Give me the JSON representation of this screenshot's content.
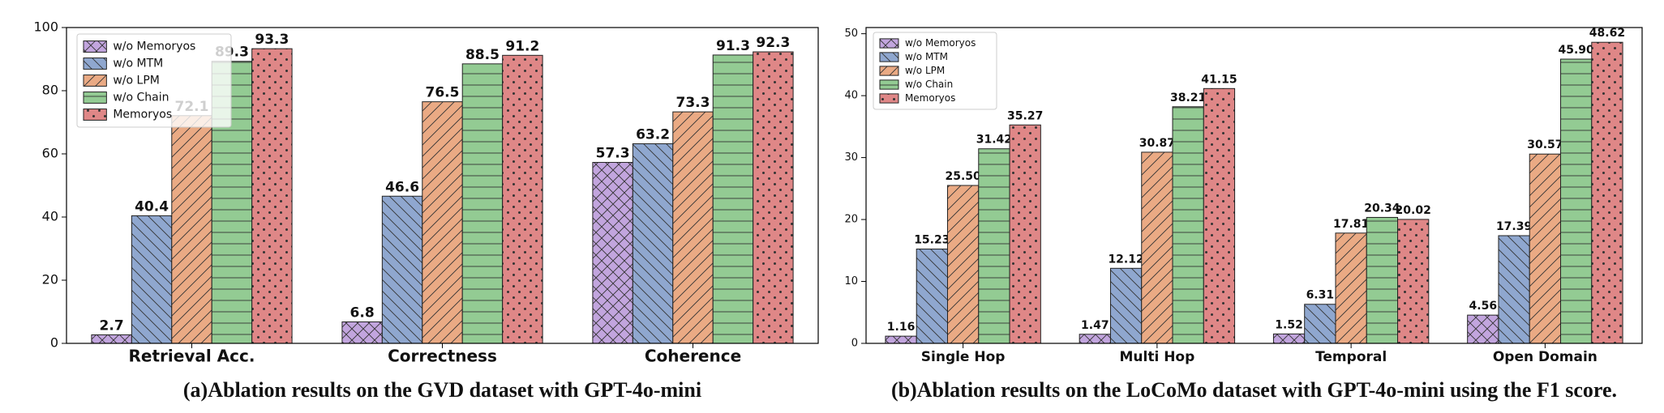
{
  "chart_data": [
    {
      "type": "bar",
      "caption": "(a)Ablation results on the GVD dataset with GPT-4o-mini",
      "categories": [
        "Retrieval Acc.",
        "Correctness",
        "Coherence"
      ],
      "series": [
        {
          "name": "w/o Memoryos",
          "color": "#c2a5de",
          "hatch": "x",
          "values": [
            2.7,
            6.8,
            57.3
          ]
        },
        {
          "name": "w/o MTM",
          "color": "#8fa7cf",
          "hatch": "backslash",
          "values": [
            40.4,
            46.6,
            63.2
          ]
        },
        {
          "name": "w/o LPM",
          "color": "#eaaa84",
          "hatch": "slash",
          "values": [
            72.1,
            76.5,
            73.3
          ]
        },
        {
          "name": "w/o Chain",
          "color": "#93cb93",
          "hatch": "horizontal",
          "values": [
            89.3,
            88.5,
            91.3
          ]
        },
        {
          "name": "Memoryos",
          "color": "#df8787",
          "hatch": "dots",
          "values": [
            93.3,
            91.2,
            92.3
          ]
        }
      ],
      "ylim": [
        0,
        100
      ],
      "yticks": [
        0,
        20,
        40,
        60,
        80,
        100
      ],
      "legend": "upper left"
    },
    {
      "type": "bar",
      "caption": "(b)Ablation results on the LoCoMo dataset with GPT-4o-mini using the F1 score.",
      "categories": [
        "Single Hop",
        "Multi Hop",
        "Temporal",
        "Open Domain"
      ],
      "series": [
        {
          "name": "w/o Memoryos",
          "color": "#c2a5de",
          "hatch": "x",
          "values": [
            1.16,
            1.47,
            1.52,
            4.56
          ],
          "value_labels": [
            "1.16",
            "1.47",
            "1.52",
            "4.56"
          ]
        },
        {
          "name": "w/o MTM",
          "color": "#8fa7cf",
          "hatch": "backslash",
          "values": [
            15.23,
            12.12,
            6.31,
            17.39
          ],
          "value_labels": [
            "15.23",
            "12.12",
            "6.31",
            "17.39"
          ]
        },
        {
          "name": "w/o LPM",
          "color": "#eaaa84",
          "hatch": "slash",
          "values": [
            25.5,
            30.87,
            17.81,
            30.57
          ],
          "value_labels": [
            "25.50",
            "30.87",
            "17.81",
            "30.57"
          ]
        },
        {
          "name": "w/o Chain",
          "color": "#93cb93",
          "hatch": "horizontal",
          "values": [
            31.42,
            38.21,
            20.34,
            45.9
          ],
          "value_labels": [
            "31.42",
            "38.21",
            "20.34",
            "45.90"
          ]
        },
        {
          "name": "Memoryos",
          "color": "#df8787",
          "hatch": "dots",
          "values": [
            35.27,
            41.15,
            20.02,
            48.62
          ],
          "value_labels": [
            "35.27",
            "41.15",
            "20.02",
            "48.62"
          ]
        }
      ],
      "ylim": [
        0,
        51
      ],
      "yticks": [
        0,
        10,
        20,
        30,
        40,
        50
      ],
      "legend": "upper left"
    }
  ]
}
